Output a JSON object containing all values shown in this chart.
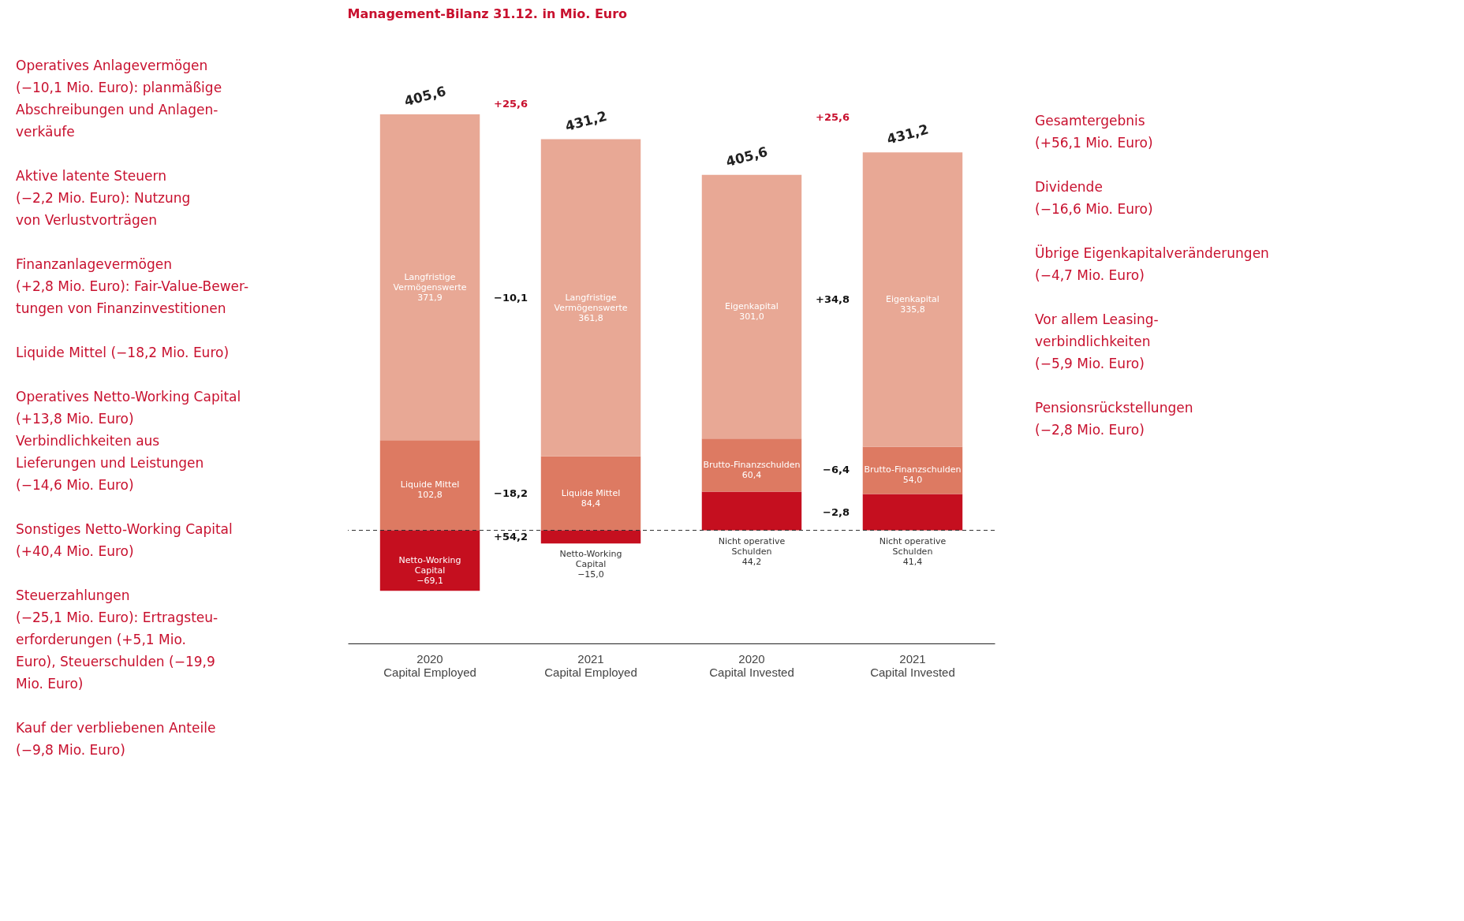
{
  "chart_data": {
    "type": "bar",
    "stacked": true,
    "title": "Management-Bilanz 31.12. in Mio. Euro",
    "categories": [
      "2020 Capital Employed",
      "2021 Capital Employed",
      "2020 Capital Invested",
      "2021 Capital Invested"
    ],
    "series": [
      {
        "name": "Liquide Mittel",
        "color": "#dd7a62",
        "values": [
          102.8,
          84.4,
          null,
          null
        ],
        "value_labels": [
          "102,8",
          "84,4",
          null,
          null
        ]
      },
      {
        "name": "Langfristige Vermögenswerte",
        "color": "#e8a895",
        "values": [
          371.9,
          361.8,
          null,
          null
        ],
        "value_labels": [
          "371,9",
          "361,8",
          null,
          null
        ]
      },
      {
        "name": "Netto-Working Capital",
        "color": "#c50f1f",
        "values": [
          -69.1,
          -15.0,
          null,
          null
        ],
        "value_labels": [
          "−69,1",
          "−15,0",
          null,
          null
        ]
      },
      {
        "name": "Nicht operative Schulden",
        "color": "#c50f1f",
        "values": [
          null,
          null,
          44.2,
          41.4
        ],
        "value_labels": [
          null,
          null,
          "44,2",
          "41,4"
        ]
      },
      {
        "name": "Brutto-Finanzschulden",
        "color": "#dd7a62",
        "values": [
          null,
          null,
          60.4,
          54.0
        ],
        "value_labels": [
          null,
          null,
          "60,4",
          "54,0"
        ]
      },
      {
        "name": "Eigenkapital",
        "color": "#e8a895",
        "values": [
          null,
          null,
          301.0,
          335.8
        ],
        "value_labels": [
          null,
          null,
          "301,0",
          "335,8"
        ]
      }
    ],
    "totals": [
      "405,6",
      "431,2",
      "405,6",
      "431,2"
    ],
    "ref_lines": [
      {
        "axis": "y",
        "value": 0,
        "line_style": "dashed"
      }
    ],
    "legend": false,
    "annotations": [
      "Operatives Anlagevermögen\n(−10,1 Mio. Euro): planmäßige\nAbschreibungen und Anlagen-\nverkäufe",
      "Aktive latente Steuern\n(−2,2 Mio. Euro): Nutzung\nvon Verlustvorträgen",
      "Finanzanlagevermögen\n(+2,8 Mio. Euro): Fair-Value-Bewer-\ntungen von Finanzinvestitionen",
      "Liquide Mittel (−18,2 Mio. Euro)",
      "Operatives Netto-Working Capital\n(+13,8 Mio. Euro)\nVerbindlichkeiten aus\nLieferungen und Leistungen\n(−14,6 Mio. Euro)",
      "Sonstiges Netto-Working Capital\n(+40,4 Mio. Euro)",
      "Steuerzahlungen\n(−25,1 Mio. Euro): Ertragsteu-\nerforderungen (+5,1 Mio.\nEuro), Steuerschulden (−19,9\nMio. Euro)",
      "Kauf der verbliebenen Anteile\n(−9,8 Mio. Euro)",
      "Gesamtergebnis\n(+56,1 Mio. Euro)",
      "Dividende\n(−16,6 Mio. Euro)",
      "Übrige Eigenkapitalveränderungen\n(−4,7 Mio. Euro)",
      "Vor allem Leasing-\nverbindlichkeiten\n(−5,9 Mio. Euro)",
      "Pensionsrückstellungen\n(−2,8 Mio. Euro)",
      "+25,6",
      "−10,1",
      "−18,2",
      "+54,2",
      "+25,6",
      "+34,8",
      "−6,4",
      "−2,8"
    ]
  }
}
